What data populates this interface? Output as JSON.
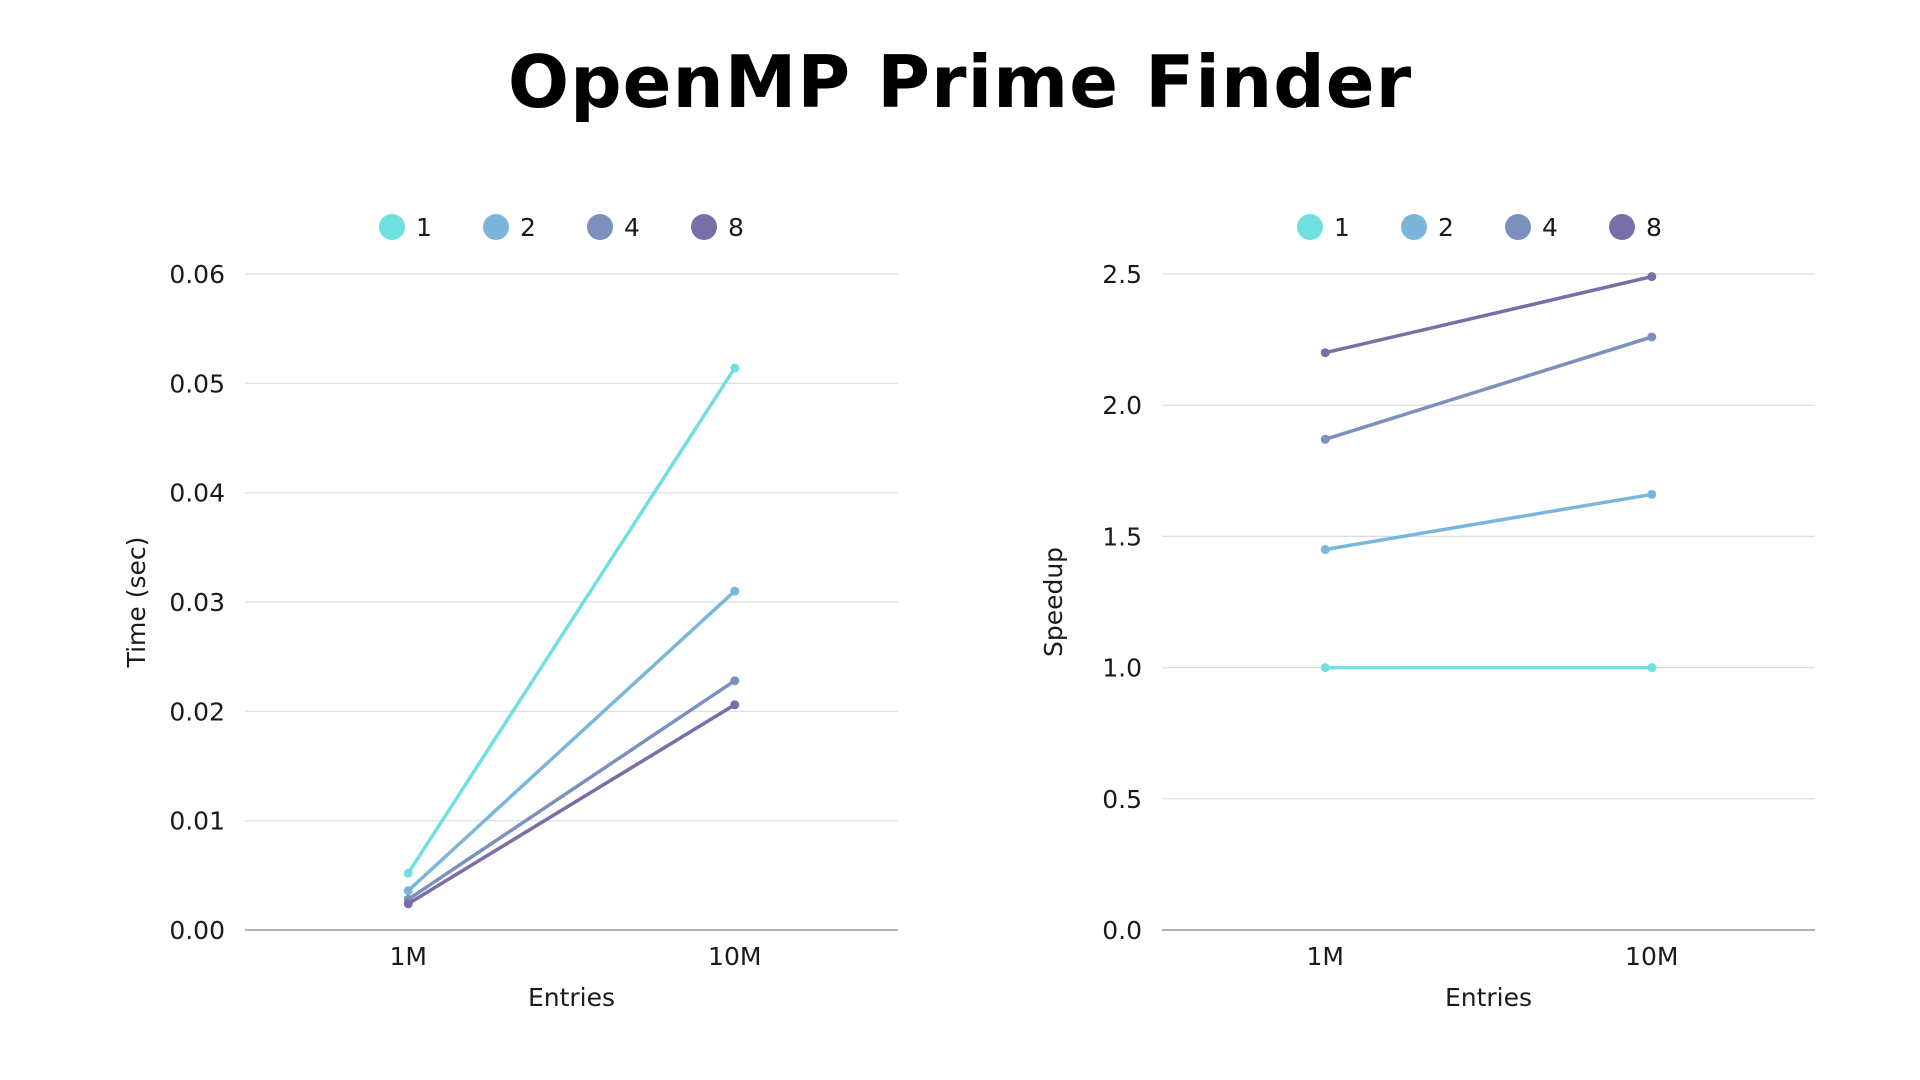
{
  "title": "OpenMP Prime Finder",
  "colors": {
    "1": "#6fdfe0",
    "2": "#7ab6dc",
    "4": "#7c90bd",
    "8": "#7a6ea8",
    "grid": "#dcdcdc",
    "axis": "#9a9a9a"
  },
  "chart_data": [
    {
      "type": "line",
      "title": "",
      "xlabel": "Entries",
      "ylabel": "Time (sec)",
      "categories": [
        "1M",
        "10M"
      ],
      "ylim": [
        0,
        0.06
      ],
      "yticks": [
        "0.00",
        "0.01",
        "0.02",
        "0.03",
        "0.04",
        "0.05",
        "0.06"
      ],
      "legend_position": "top-center",
      "grid": true,
      "series": [
        {
          "name": "1",
          "values": [
            0.0052,
            0.0514
          ]
        },
        {
          "name": "2",
          "values": [
            0.0036,
            0.031
          ]
        },
        {
          "name": "4",
          "values": [
            0.0028,
            0.0228
          ]
        },
        {
          "name": "8",
          "values": [
            0.0024,
            0.0206
          ]
        }
      ]
    },
    {
      "type": "line",
      "title": "",
      "xlabel": "Entries",
      "ylabel": "Speedup",
      "categories": [
        "1M",
        "10M"
      ],
      "ylim": [
        0,
        2.5
      ],
      "yticks": [
        "0.0",
        "0.5",
        "1.0",
        "1.5",
        "2.0",
        "2.5"
      ],
      "legend_position": "top-center",
      "grid": true,
      "series": [
        {
          "name": "1",
          "values": [
            1.0,
            1.0
          ]
        },
        {
          "name": "2",
          "values": [
            1.45,
            1.66
          ]
        },
        {
          "name": "4",
          "values": [
            1.87,
            2.26
          ]
        },
        {
          "name": "8",
          "values": [
            2.2,
            2.49
          ]
        }
      ]
    }
  ]
}
